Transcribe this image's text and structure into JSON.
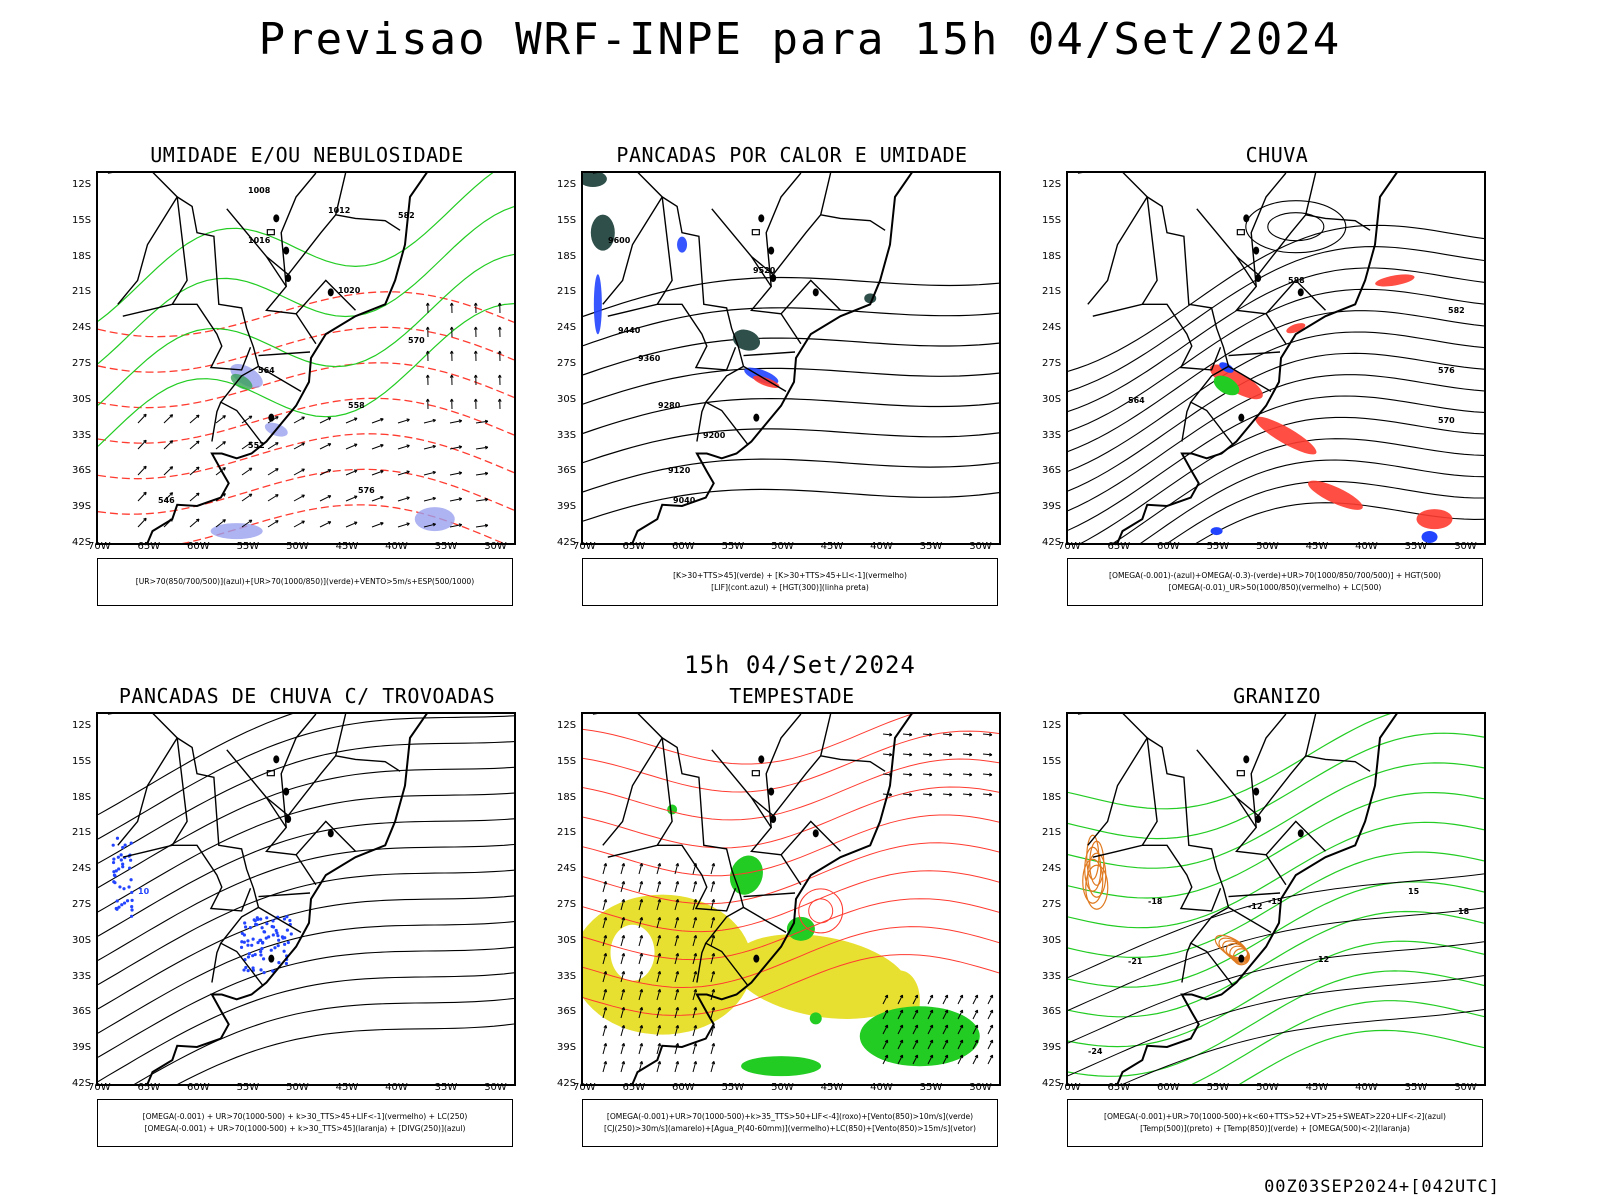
{
  "header": {
    "title": "Previsao WRF-INPE  para 15h 04/Set/2024",
    "subtitle": "15h 04/Set/2024",
    "footer": "00Z03SEP2024+[042UTC]"
  },
  "axes": {
    "lat_labels": [
      "12S",
      "15S",
      "18S",
      "21S",
      "24S",
      "27S",
      "30S",
      "33S",
      "36S",
      "39S",
      "42S"
    ],
    "lon_labels": [
      "70W",
      "65W",
      "60W",
      "55W",
      "50W",
      "45W",
      "40W",
      "35W",
      "30W"
    ]
  },
  "panels": [
    {
      "id": "umidade",
      "title": "UMIDADE E/OU NEBULOSIDADE",
      "legend": [
        "[UR>70(850/700/500)](azul)+[UR>70(1000/850)](verde)+VENTO>5m/s+ESP(500/1000)"
      ],
      "contour_labels": [
        "1008",
        "1012",
        "1016",
        "1020",
        "570",
        "576",
        "582",
        "564",
        "558",
        "552",
        "546"
      ]
    },
    {
      "id": "pancadas-calor",
      "title": "PANCADAS POR CALOR E UMIDADE",
      "legend": [
        "[K>30+TTS>45](verde) + [K>30+TTS>45+LI<-1](vermelho)",
        "[LIF](cont.azul) + [HGT(300)](linha preta)"
      ],
      "contour_labels": [
        "9600",
        "9520",
        "9440",
        "9360",
        "9280",
        "9200",
        "9120",
        "9040"
      ]
    },
    {
      "id": "chuva",
      "title": "CHUVA",
      "legend": [
        "[OMEGA(-0.001)-(azul)+OMEGA(-0.3)-(verde)+UR>70(1000/850/700/500)] + HGT(500)",
        "[OMEGA(-0.01)_UR>50(1000/850)(vermelho) + LC(500)"
      ],
      "contour_labels": [
        "588",
        "582",
        "576",
        "570",
        "564"
      ]
    },
    {
      "id": "trovoadas",
      "title": "PANCADAS DE CHUVA C/ TROVOADAS",
      "legend": [
        "[OMEGA(-0.001) + UR>70(1000-500) + k>30_TTS>45+LIF<-1](vermelho) + LC(250)",
        "[OMEGA(-0.001) + UR>70(1000-500) + k>30_TTS>45](laranja) + [DIVG(250)](azul)"
      ],
      "contour_labels": [
        "10"
      ]
    },
    {
      "id": "tempestade",
      "title": "TEMPESTADE",
      "legend": [
        "[OMEGA(-0.001)+UR>70(1000-500)+k>35_TTS>50+LIF<-4](roxo)+[Vento(850)>10m/s](verde)",
        "[CJ(250)>30m/s](amarelo)+[Agua_P(40-60mm)](vermelho)+LC(850)+[Vento(850)>15m/s](vetor)"
      ],
      "contour_labels": []
    },
    {
      "id": "granizo",
      "title": "GRANIZO",
      "legend": [
        "[OMEGA(-0.001)+UR>70(1000-500)+k<60+TTS>52+VT>25+SWEAT>220+LIF<-2](azul)",
        "[Temp(500)](preto) + [Temp(850)](verde) + [OMEGA(500)<-2](laranja)"
      ],
      "contour_labels": [
        "-24",
        "-21",
        "-18",
        "-15",
        "-12",
        "12",
        "15",
        "18"
      ]
    }
  ],
  "colors": {
    "red": "#ff3b30",
    "green": "#22cc22",
    "blue": "#2244ff",
    "yellow": "#e8e030",
    "orange": "#e07a20",
    "darkgreen": "#2f4f4a",
    "lavender": "#9aa0ee"
  }
}
